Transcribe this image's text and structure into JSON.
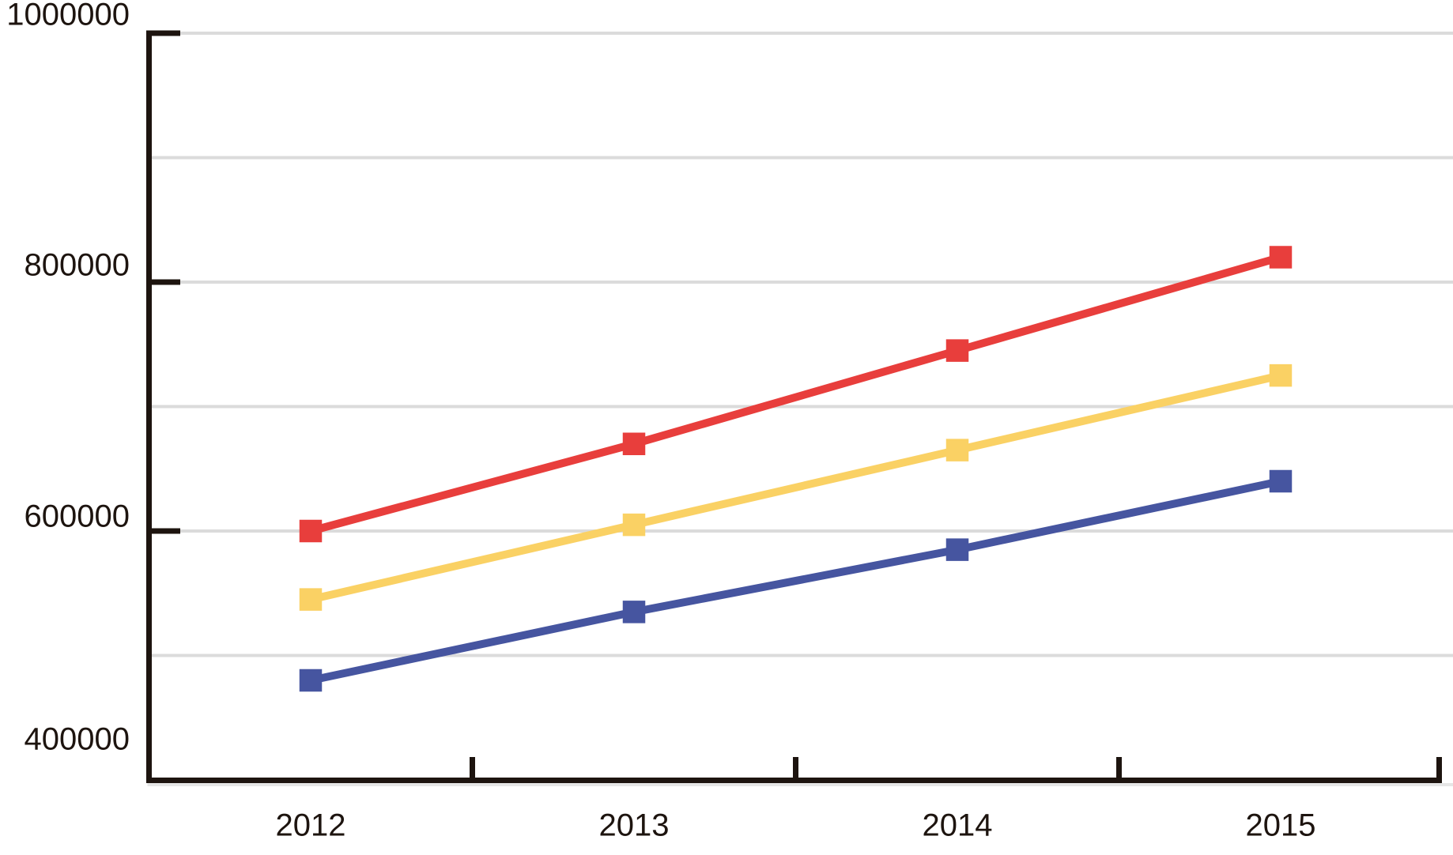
{
  "chart_data": {
    "type": "line",
    "title": "",
    "categories": [
      "2012",
      "2013",
      "2014",
      "2015"
    ],
    "series": [
      {
        "name": "red",
        "color": "#e83e3c",
        "values": [
          600000,
          670000,
          745000,
          820000
        ]
      },
      {
        "name": "yellow",
        "color": "#fad164",
        "values": [
          545000,
          605000,
          665000,
          725000
        ]
      },
      {
        "name": "blue",
        "color": "#4655a0",
        "values": [
          480000,
          535000,
          585000,
          640000
        ]
      }
    ],
    "x_axis": {
      "tick_labels": [
        "2012",
        "2013",
        "2014",
        "2015"
      ]
    },
    "y_axis": {
      "min": 400000,
      "max": 1000000,
      "label_interval": 200000,
      "gridline_interval": 100000,
      "tick_labels_top_to_bottom": [
        "1000000",
        "800000",
        "600000",
        "400000"
      ]
    },
    "ylim": [
      400000,
      1000000
    ],
    "grid": true,
    "legend": "none",
    "marker": "square",
    "colors": {
      "axis": "#1d140f",
      "text": "#1d140f",
      "gridline": "#dbdbdb",
      "background": "#ffffff"
    }
  }
}
